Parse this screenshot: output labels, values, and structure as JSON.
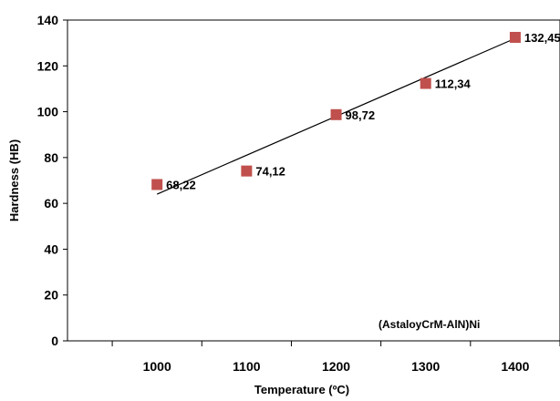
{
  "chart_data": {
    "type": "scatter",
    "xlabel": "Temperature (ºC)",
    "ylabel": "Hardness (HB)",
    "x_ticks": [
      "1000",
      "1100",
      "1200",
      "1300",
      "1400"
    ],
    "y_ticks": [
      "0",
      "20",
      "40",
      "60",
      "80",
      "100",
      "120",
      "140"
    ],
    "xlim": [
      900,
      1450
    ],
    "ylim": [
      0,
      140
    ],
    "grid": false,
    "marker_color": "#c0504d",
    "trendline": {
      "type": "linear",
      "from": [
        1000,
        64
      ],
      "to": [
        1400,
        132
      ]
    },
    "points": [
      {
        "x": 1000,
        "y": 68.22,
        "label": "68,22"
      },
      {
        "x": 1100,
        "y": 74.12,
        "label": "74,12"
      },
      {
        "x": 1200,
        "y": 98.72,
        "label": "98,72"
      },
      {
        "x": 1300,
        "y": 112.34,
        "label": "112,34"
      },
      {
        "x": 1400,
        "y": 132.45,
        "label": "132,45"
      }
    ],
    "annotation": "(AstaloyCrM-AlN)Ni"
  }
}
